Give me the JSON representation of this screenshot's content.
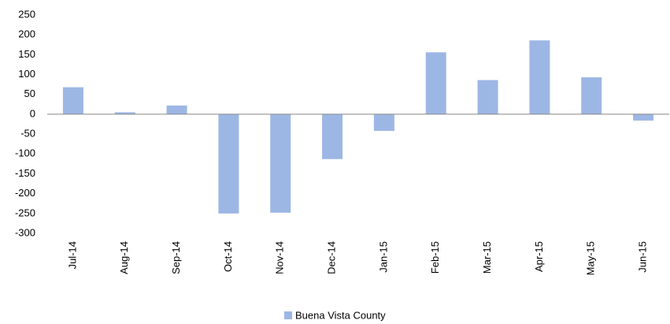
{
  "chart_data": {
    "type": "bar",
    "categories": [
      "Jul-14",
      "Aug-14",
      "Sep-14",
      "Oct-14",
      "Nov-14",
      "Dec-14",
      "Jan-15",
      "Feb-15",
      "Mar-15",
      "Apr-15",
      "May-15",
      "Jun-15"
    ],
    "series": [
      {
        "name": "Buena Vista County",
        "color": "#9db7e5",
        "values": [
          68,
          5,
          22,
          -250,
          -248,
          -113,
          -42,
          156,
          86,
          186,
          93,
          -16
        ]
      }
    ],
    "ylim": [
      -300,
      250
    ],
    "yticks": [
      -300,
      -250,
      -200,
      -150,
      -100,
      -50,
      0,
      50,
      100,
      150,
      200,
      250
    ],
    "grid": false,
    "legend": "bottom"
  }
}
